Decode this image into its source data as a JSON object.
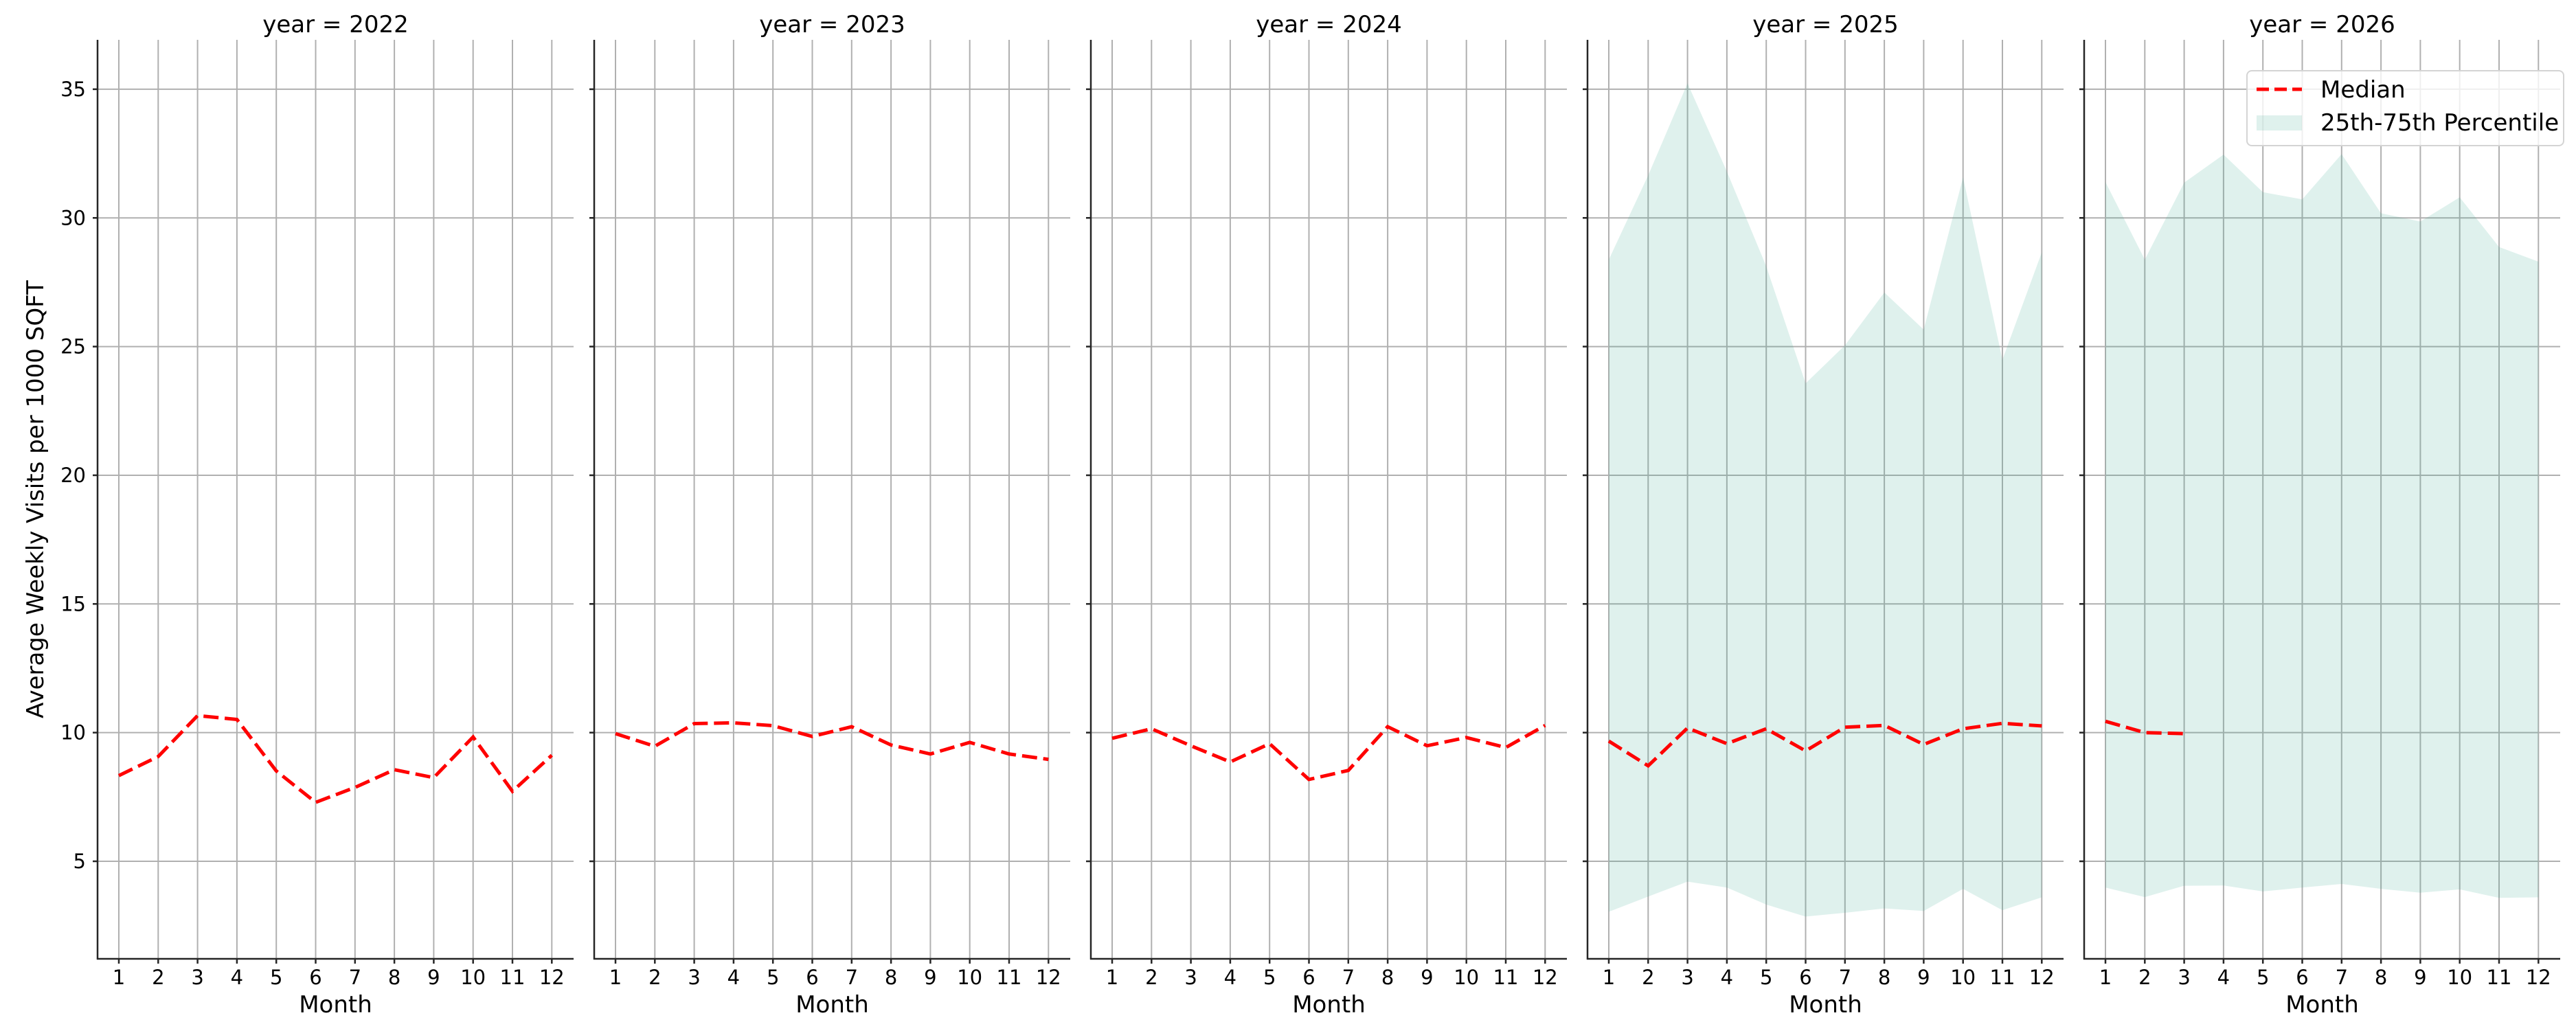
{
  "figure": {
    "ylabel": "Average Weekly Visits per 1000 SQFT",
    "xlabel": "Month",
    "legend": {
      "median_label": "Median",
      "band_label": "25th-75th Percentile"
    },
    "colors": {
      "median": "#ff0000",
      "band_rgb": "67,173,149",
      "band_alpha": 0.17,
      "grid": "#b0b0b0",
      "axis": "#262626"
    }
  },
  "chart_data": {
    "type": "line",
    "title": "",
    "facet_by": "year",
    "xlabel": "Month",
    "ylabel": "Average Weekly Visits per 1000 SQFT",
    "x": [
      1,
      2,
      3,
      4,
      5,
      6,
      7,
      8,
      9,
      10,
      11,
      12
    ],
    "x_tick_labels": [
      "1",
      "2",
      "3",
      "4",
      "5",
      "6",
      "7",
      "8",
      "9",
      "10",
      "11",
      "12"
    ],
    "y_ticks": [
      5,
      10,
      15,
      20,
      25,
      30,
      35
    ],
    "ylim": [
      1.2,
      36.9
    ],
    "grid": true,
    "sharey": true,
    "legend_position": "upper right (last panel)",
    "legend": [
      "Median",
      "25th-75th Percentile"
    ],
    "panels": [
      {
        "title": "year = 2022",
        "year": 2022,
        "series": [
          {
            "name": "Median",
            "style": "dashed",
            "values": [
              8.33,
              9.07,
              10.66,
              10.51,
              8.51,
              7.29,
              7.87,
              8.56,
              8.25,
              9.83,
              7.72,
              9.12
            ]
          }
        ],
        "band": null
      },
      {
        "title": "year = 2023",
        "year": 2023,
        "series": [
          {
            "name": "Median",
            "style": "dashed",
            "values": [
              9.96,
              9.47,
              10.35,
              10.38,
              10.27,
              9.85,
              10.23,
              9.52,
              9.17,
              9.62,
              9.17,
              8.96
            ]
          }
        ],
        "band": null
      },
      {
        "title": "year = 2024",
        "year": 2024,
        "series": [
          {
            "name": "Median",
            "style": "dashed",
            "values": [
              9.78,
              10.15,
              9.49,
              8.86,
              9.57,
              8.18,
              8.53,
              10.23,
              9.49,
              9.81,
              9.42,
              10.28
            ]
          }
        ],
        "band": null
      },
      {
        "title": "year = 2025",
        "year": 2025,
        "series": [
          {
            "name": "Median",
            "style": "dashed",
            "values": [
              9.67,
              8.71,
              10.18,
              9.57,
              10.15,
              9.29,
              10.21,
              10.28,
              9.54,
              10.15,
              10.36,
              10.26
            ]
          }
        ],
        "band": {
          "name": "25th-75th Percentile",
          "lower": [
            3.04,
            3.63,
            4.21,
            3.98,
            3.32,
            2.85,
            3.0,
            3.17,
            3.07,
            3.93,
            3.1,
            3.6
          ],
          "upper": [
            28.38,
            31.65,
            35.23,
            31.8,
            28.12,
            23.57,
            25.05,
            27.1,
            25.66,
            31.57,
            24.49,
            28.66
          ]
        }
      },
      {
        "title": "year = 2026",
        "year": 2026,
        "series": [
          {
            "name": "Median",
            "style": "dashed",
            "values": [
              10.44,
              10.0,
              9.96,
              null,
              null,
              null,
              null,
              null,
              null,
              null,
              null,
              null
            ]
          }
        ],
        "band": {
          "name": "25th-75th Percentile",
          "lower": [
            3.98,
            3.61,
            4.05,
            4.06,
            3.83,
            3.98,
            4.12,
            3.93,
            3.78,
            3.91,
            3.58,
            3.6
          ],
          "upper": [
            31.39,
            28.38,
            31.37,
            32.46,
            31.0,
            30.72,
            32.48,
            30.18,
            29.86,
            30.8,
            28.87,
            28.3
          ]
        }
      }
    ]
  }
}
